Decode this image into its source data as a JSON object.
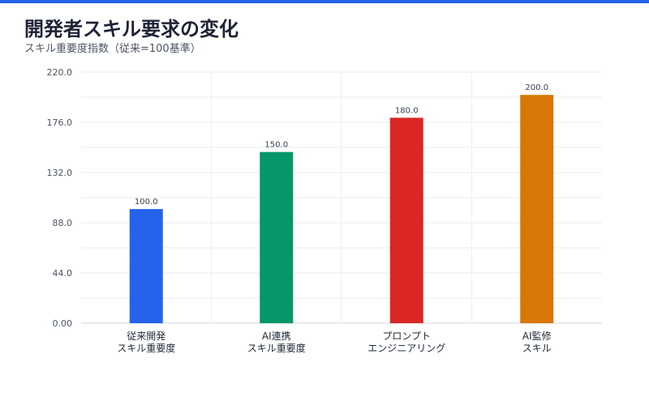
{
  "accent_color": "#2563eb",
  "chart_data": {
    "type": "bar",
    "title": "開発者スキル要求の変化",
    "subtitle": "スキル重要度指数（従来=100基準）",
    "categories": [
      [
        "従来開発",
        "スキル重要度"
      ],
      [
        "AI連携",
        "スキル重要度"
      ],
      [
        "プロンプト",
        "エンジニアリング"
      ],
      [
        "AI監修",
        "スキル"
      ]
    ],
    "values": [
      100.0,
      150.0,
      180.0,
      200.0
    ],
    "value_labels": [
      "100.0",
      "150.0",
      "180.0",
      "200.0"
    ],
    "colors": [
      "#2563eb",
      "#059669",
      "#dc2626",
      "#d97706"
    ],
    "yticks": [
      0,
      44,
      88,
      132,
      176,
      220
    ],
    "ytick_labels": [
      "0.00",
      "44.0",
      "88.0",
      "132.0",
      "176.0",
      "220.0"
    ],
    "ylim": [
      0,
      220
    ],
    "grid": true,
    "legend": "none"
  }
}
